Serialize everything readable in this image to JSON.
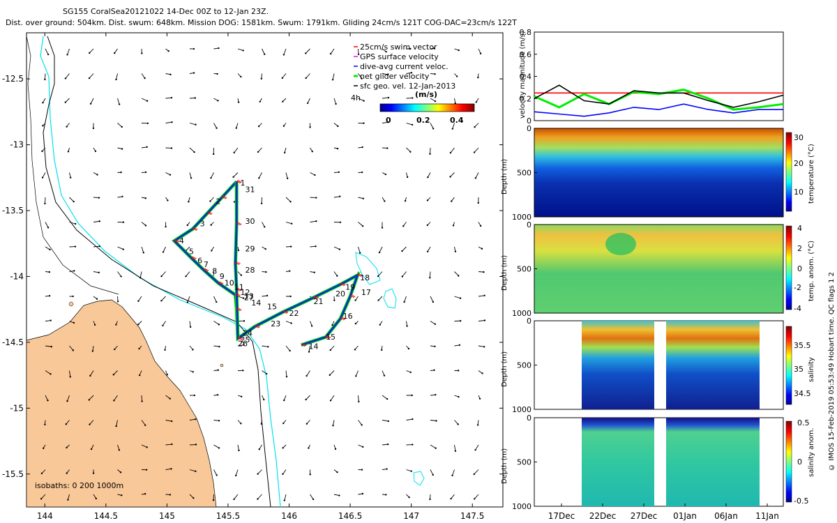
{
  "header": {
    "line1": "SG155 CoralSea20121022 14-Dec 00Z to 12-Jan 23Z.",
    "line2": "Dist. over ground: 504km. Dist. swum: 648km. Mission DOG: 1581km. Swum: 1791km. Gliding 24cm/s 121T COG-DAC=23cm/s 122T"
  },
  "footer_note": "© IMOS 15-Feb-2019 05:53:49 Hobart time. QC flags 1  2",
  "colors": {
    "land": "#f9c898",
    "isobath200": "#00e0f0",
    "track": "#1030c0",
    "swim": "#ff0000",
    "net": "#00ee00"
  },
  "chart_data": [
    {
      "type": "scatter",
      "name": "glider track map",
      "xlabel": "",
      "ylabel": "",
      "xlim": [
        143.85,
        147.75
      ],
      "ylim": [
        -15.75,
        -12.15
      ],
      "xticks": [
        144,
        144.5,
        145,
        145.5,
        146,
        146.5,
        147,
        147.5
      ],
      "yticks": [
        -12.5,
        -13,
        -13.5,
        -14,
        -14.5,
        -15,
        -15.5
      ],
      "legend": [
        "25cm/s swim vector",
        "GPS surface velocity",
        "dive-avg current veloc.",
        "net glider velocity",
        "sfc geo. vel. 12-Jan-2013"
      ],
      "time_label": "4h",
      "colorbar": {
        "label": "(m/s)",
        "ticks": [
          "0",
          "0.2",
          "0.4"
        ],
        "range": [
          0,
          0.5
        ]
      },
      "isobath_label": "isobaths: 0   200  1000m",
      "track": [
        {
          "lon": 145.57,
          "lat": -13.28
        },
        {
          "lon": 145.45,
          "lat": -13.4
        },
        {
          "lon": 145.33,
          "lat": -13.52
        },
        {
          "lon": 145.21,
          "lat": -13.64
        },
        {
          "lon": 145.06,
          "lat": -13.73
        },
        {
          "lon": 145.2,
          "lat": -13.86
        },
        {
          "lon": 145.3,
          "lat": -13.95
        },
        {
          "lon": 145.42,
          "lat": -14.05
        },
        {
          "lon": 145.56,
          "lat": -14.14
        },
        {
          "lon": 145.57,
          "lat": -14.25
        },
        {
          "lon": 145.58,
          "lat": -14.47
        },
        {
          "lon": 145.72,
          "lat": -14.38
        },
        {
          "lon": 145.95,
          "lat": -14.27
        },
        {
          "lon": 146.2,
          "lat": -14.16
        },
        {
          "lon": 146.42,
          "lat": -14.06
        },
        {
          "lon": 146.56,
          "lat": -13.99
        },
        {
          "lon": 146.5,
          "lat": -14.15
        },
        {
          "lon": 146.42,
          "lat": -14.32
        },
        {
          "lon": 146.3,
          "lat": -14.46
        },
        {
          "lon": 146.1,
          "lat": -14.52
        }
      ],
      "track_west": [
        {
          "lon": 145.57,
          "lat": -13.28
        },
        {
          "lon": 145.57,
          "lat": -13.6
        },
        {
          "lon": 145.56,
          "lat": -13.9
        },
        {
          "lon": 145.57,
          "lat": -14.1
        },
        {
          "lon": 145.58,
          "lat": -14.47
        }
      ],
      "day_labels": [
        {
          "text": "1",
          "lon": 145.6,
          "lat": -13.31
        },
        {
          "text": "2",
          "lon": 145.4,
          "lat": -13.45
        },
        {
          "text": "3",
          "lon": 145.27,
          "lat": -13.62
        },
        {
          "text": "4",
          "lon": 145.1,
          "lat": -13.75
        },
        {
          "text": "5",
          "lon": 145.18,
          "lat": -13.83
        },
        {
          "text": "6",
          "lon": 145.25,
          "lat": -13.9
        },
        {
          "text": "7",
          "lon": 145.3,
          "lat": -13.93
        },
        {
          "text": "8",
          "lon": 145.37,
          "lat": -13.98
        },
        {
          "text": "9",
          "lon": 145.43,
          "lat": -14.02
        },
        {
          "text": "10",
          "lon": 145.47,
          "lat": -14.07
        },
        {
          "text": "11",
          "lon": 145.55,
          "lat": -14.1
        },
        {
          "text": "12",
          "lon": 145.6,
          "lat": -14.14
        },
        {
          "text": "13",
          "lon": 145.63,
          "lat": -14.17
        },
        {
          "text": "27",
          "lon": 145.63,
          "lat": -14.18
        },
        {
          "text": "14",
          "lon": 145.69,
          "lat": -14.22
        },
        {
          "text": "15",
          "lon": 145.82,
          "lat": -14.25
        },
        {
          "text": "22",
          "lon": 146.0,
          "lat": -14.3
        },
        {
          "text": "23",
          "lon": 145.85,
          "lat": -14.38
        },
        {
          "text": "24",
          "lon": 145.62,
          "lat": -14.45
        },
        {
          "text": "25",
          "lon": 145.6,
          "lat": -14.5
        },
        {
          "text": "26",
          "lon": 145.58,
          "lat": -14.53
        },
        {
          "text": "31",
          "lon": 145.64,
          "lat": -13.36
        },
        {
          "text": "30",
          "lon": 145.64,
          "lat": -13.6
        },
        {
          "text": "29",
          "lon": 145.64,
          "lat": -13.81
        },
        {
          "text": "28",
          "lon": 145.64,
          "lat": -13.97
        },
        {
          "text": "21",
          "lon": 146.2,
          "lat": -14.21
        },
        {
          "text": "20",
          "lon": 146.38,
          "lat": -14.15
        },
        {
          "text": "19",
          "lon": 146.46,
          "lat": -14.1
        },
        {
          "text": "18",
          "lon": 146.58,
          "lat": -14.03
        },
        {
          "text": "17",
          "lon": 146.59,
          "lat": -14.14
        },
        {
          "text": "16",
          "lon": 146.44,
          "lat": -14.32
        },
        {
          "text": "15",
          "lon": 146.3,
          "lat": -14.48
        },
        {
          "text": "14",
          "lon": 146.16,
          "lat": -14.55
        }
      ]
    },
    {
      "type": "line",
      "name": "velocity magnitude",
      "ylabel": "velocity magnitude (m/s)",
      "ylim": [
        0,
        0.8
      ],
      "yticks": [
        0,
        0.2,
        0.4,
        0.6,
        0.8
      ],
      "x": [
        0,
        3,
        6,
        9,
        12,
        15,
        18,
        21,
        24,
        27,
        30
      ],
      "series": [
        {
          "name": "target speed",
          "color": "#ff0000",
          "values": [
            0.25,
            0.25,
            0.25,
            0.25,
            0.25,
            0.25,
            0.25,
            0.25,
            0.25,
            0.25,
            0.25
          ]
        },
        {
          "name": "net glider velocity",
          "color": "#00ee00",
          "values": [
            0.22,
            0.12,
            0.24,
            0.15,
            0.26,
            0.24,
            0.28,
            0.2,
            0.1,
            0.12,
            0.15
          ]
        },
        {
          "name": "dive-avg current",
          "color": "#0000ff",
          "values": [
            0.08,
            0.06,
            0.04,
            0.07,
            0.12,
            0.1,
            0.15,
            0.1,
            0.07,
            0.1,
            0.1
          ]
        },
        {
          "name": "sfc geo vel",
          "color": "#000000",
          "values": [
            0.2,
            0.32,
            0.18,
            0.15,
            0.27,
            0.25,
            0.25,
            0.18,
            0.12,
            0.17,
            0.23
          ]
        }
      ]
    },
    {
      "type": "heatmap",
      "name": "temperature section",
      "ylabel": "Depth (m)",
      "ylim": [
        0,
        1000
      ],
      "yticks": [
        0,
        500,
        1000
      ],
      "colorbar": {
        "label": "temperature (°C)",
        "ticks": [
          10,
          20,
          30
        ]
      }
    },
    {
      "type": "heatmap",
      "name": "temperature anomaly section",
      "ylabel": "Depth (m)",
      "ylim": [
        0,
        1000
      ],
      "yticks": [
        0,
        500,
        1000
      ],
      "colorbar": {
        "label": "temp. anom. (°C)",
        "ticks": [
          -4,
          -2,
          0,
          2,
          4
        ]
      }
    },
    {
      "type": "heatmap",
      "name": "salinity section",
      "ylabel": "Depth (m)",
      "ylim": [
        0,
        1000
      ],
      "yticks": [
        0,
        500,
        1000
      ],
      "colorbar": {
        "label": "salinity",
        "ticks": [
          34.5,
          35,
          35.5
        ]
      }
    },
    {
      "type": "heatmap",
      "name": "salinity anomaly section",
      "ylabel": "Depth (m)",
      "ylim": [
        0,
        1000
      ],
      "yticks": [
        0,
        500,
        1000
      ],
      "xticks": [
        "17Dec",
        "22Dec",
        "27Dec",
        "01Jan",
        "06Jan",
        "11Jan"
      ],
      "colorbar": {
        "label": "salinity anom.",
        "ticks": [
          -0.5,
          0,
          0.5
        ]
      }
    }
  ]
}
